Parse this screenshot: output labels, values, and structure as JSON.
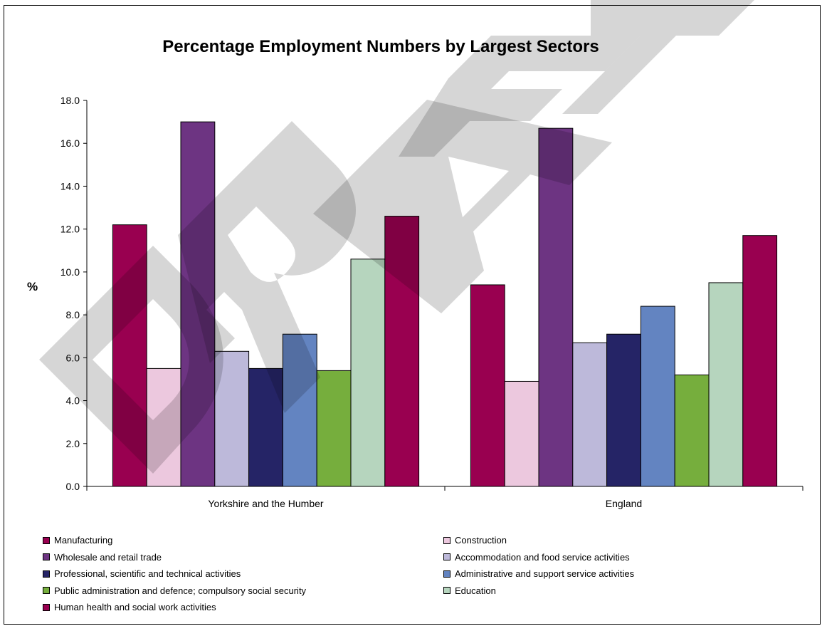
{
  "chart_data": {
    "type": "bar",
    "title": "Percentage Employment Numbers by Largest Sectors",
    "ylabel": "%",
    "xlabel": "",
    "ylim": [
      0,
      18
    ],
    "yticks": [
      "0.0",
      "2.0",
      "4.0",
      "6.0",
      "8.0",
      "10.0",
      "12.0",
      "14.0",
      "16.0",
      "18.0"
    ],
    "categories": [
      "Yorkshire and the Humber",
      "England"
    ],
    "series": [
      {
        "name": "Manufacturing",
        "color": "#990050",
        "values": [
          12.2,
          9.4
        ]
      },
      {
        "name": "Construction",
        "color": "#ECC8DE",
        "values": [
          5.5,
          4.9
        ]
      },
      {
        "name": "Wholesale and retail trade",
        "color": "#6D3482",
        "values": [
          17.0,
          16.7
        ]
      },
      {
        "name": "Accommodation and food service activities",
        "color": "#BDB9DA",
        "values": [
          6.3,
          6.7
        ]
      },
      {
        "name": "Professional, scientific and technical activities",
        "color": "#252466",
        "values": [
          5.5,
          7.1
        ]
      },
      {
        "name": "Administrative and support service activities",
        "color": "#6384C1",
        "values": [
          7.1,
          8.4
        ]
      },
      {
        "name": "Public administration and defence; compulsory social security",
        "color": "#76AE3D",
        "values": [
          5.4,
          5.2
        ]
      },
      {
        "name": "Education",
        "color": "#B6D5BE",
        "values": [
          10.6,
          9.5
        ]
      },
      {
        "name": "Human health and social work activities",
        "color": "#990050",
        "values": [
          12.6,
          11.7
        ]
      }
    ],
    "legend_position": "bottom",
    "grid": false
  }
}
